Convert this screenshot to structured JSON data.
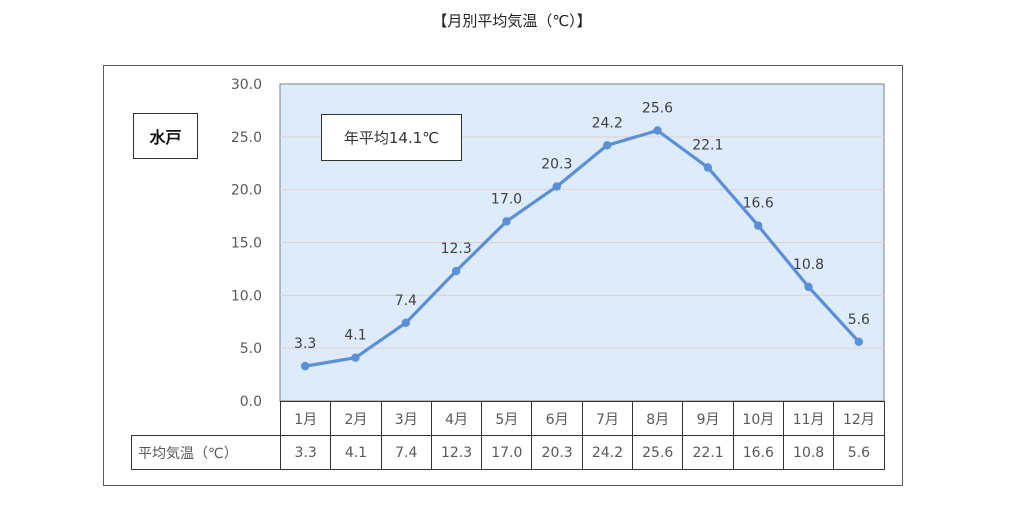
{
  "title": "【月別平均気温（℃）】",
  "city_label": "水戸",
  "annual_average_label": "年平均14.1℃",
  "table": {
    "row_label": "平均気温（℃）",
    "months": [
      "1月",
      "2月",
      "3月",
      "4月",
      "5月",
      "6月",
      "7月",
      "8月",
      "9月",
      "10月",
      "11月",
      "12月"
    ],
    "values": [
      "3.3",
      "4.1",
      "7.4",
      "12.3",
      "17.0",
      "20.3",
      "24.2",
      "25.6",
      "22.1",
      "16.6",
      "10.8",
      "5.6"
    ]
  },
  "colors": {
    "plot_background": "#ddebfb",
    "line": "#5b8fd6",
    "gridline": "#e3cfd3"
  },
  "chart_data": {
    "type": "line",
    "title": "【月別平均気温（℃）】",
    "categories": [
      "1月",
      "2月",
      "3月",
      "4月",
      "5月",
      "6月",
      "7月",
      "8月",
      "9月",
      "10月",
      "11月",
      "12月"
    ],
    "series": [
      {
        "name": "平均気温（℃）",
        "values": [
          3.3,
          4.1,
          7.4,
          12.3,
          17.0,
          20.3,
          24.2,
          25.6,
          22.1,
          16.6,
          10.8,
          5.6
        ]
      }
    ],
    "xlabel": "",
    "ylabel": "",
    "ylim": [
      0,
      30
    ],
    "yticks": [
      "0.0",
      "5.0",
      "10.0",
      "15.0",
      "20.0",
      "25.0",
      "30.0"
    ],
    "grid": true,
    "legend": "none (data table below chart)",
    "annotations": [
      "水戸",
      "年平均14.1℃"
    ]
  }
}
